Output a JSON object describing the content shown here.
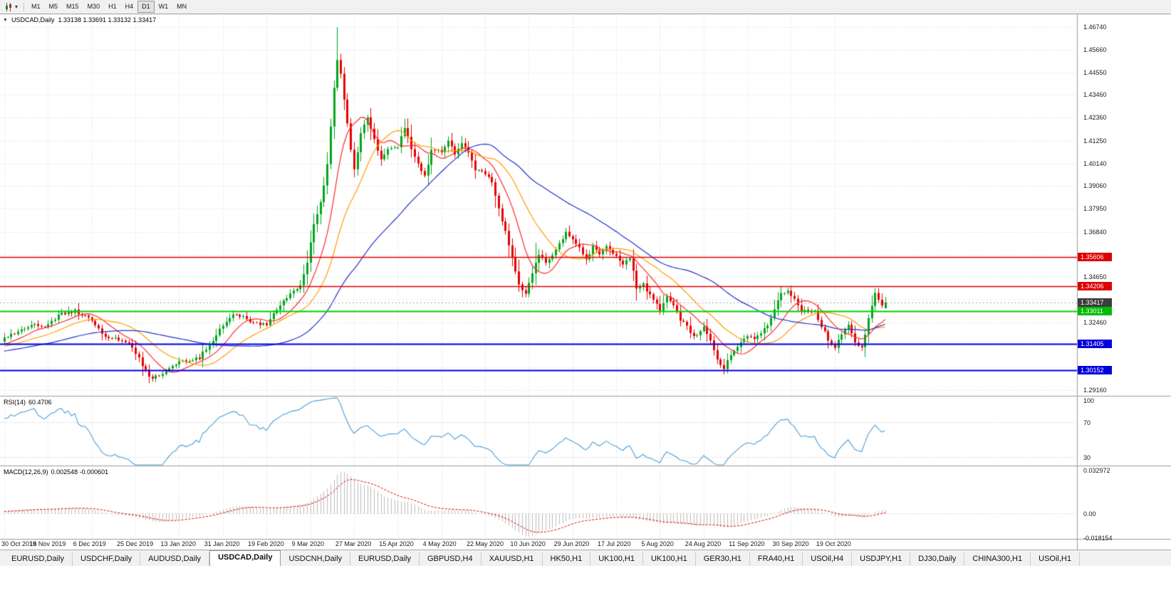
{
  "toolbar": {
    "timeframes": [
      "M1",
      "M5",
      "M15",
      "M30",
      "H1",
      "H4",
      "D1",
      "W1",
      "MN"
    ],
    "active_timeframe": "D1",
    "icons": [
      "candlestick-chart-icon",
      "chevron-down-icon"
    ]
  },
  "chart_header": {
    "symbol_title": "USDCAD,Daily",
    "ohlc": "1.33138 1.33691 1.33132 1.33417"
  },
  "price_axis": {
    "labels": [
      "1.46740",
      "1.45660",
      "1.44550",
      "1.43460",
      "1.42360",
      "1.41250",
      "1.40140",
      "1.39060",
      "1.37950",
      "1.36840",
      "1.34650",
      "1.32460",
      "1.29160"
    ],
    "grid_prices": [
      1.4674,
      1.4566,
      1.4455,
      1.4346,
      1.4236,
      1.4125,
      1.4014,
      1.3906,
      1.3795,
      1.3684,
      1.3573,
      1.3465,
      1.3356,
      1.3246,
      1.3137,
      1.3027,
      1.2916
    ],
    "badges": [
      {
        "label": "1.35606",
        "price": 1.35606,
        "color": "#dd0000",
        "type": "resistance-line"
      },
      {
        "label": "1.34206",
        "price": 1.34206,
        "color": "#dd0000",
        "type": "resistance-line"
      },
      {
        "label": "1.33417",
        "price": 1.33417,
        "color": "#3c3c3c",
        "type": "current-price"
      },
      {
        "label": "1.33011",
        "price": 1.33011,
        "color": "#00bb00",
        "type": "support-line"
      },
      {
        "label": "1.31405",
        "price": 1.31405,
        "color": "#0000dd",
        "type": "support-line"
      },
      {
        "label": "1.30152",
        "price": 1.30152,
        "color": "#0000dd",
        "type": "support-line"
      }
    ]
  },
  "x_axis": {
    "labels": [
      "30 Oct 2019",
      "18 Nov 2019",
      "6 Dec 2019",
      "25 Dec 2019",
      "13 Jan 2020",
      "31 Jan 2020",
      "19 Feb 2020",
      "9 Mar 2020",
      "27 Mar 2020",
      "15 Apr 2020",
      "4 May 2020",
      "22 May 2020",
      "10 Jun 2020",
      "29 Jun 2020",
      "17 Jul 2020",
      "5 Aug 2020",
      "24 Aug 2020",
      "11 Sep 2020",
      "30 Sep 2020",
      "19 Oct 2020"
    ],
    "tick_step": 13
  },
  "rsi_panel": {
    "label": "RSI(14)",
    "value": "60.4706",
    "axis_labels": [
      "100",
      "70",
      "30"
    ],
    "levels": [
      70,
      30
    ],
    "range": [
      20,
      100
    ],
    "line_color": "#4a9fd8"
  },
  "macd_panel": {
    "label": "MACD(12,26,9)",
    "values": "0.002548 -0.000601",
    "axis_labels": [
      "0.032972",
      "0.00",
      "-0.018154"
    ],
    "range": [
      -0.018154,
      0.032972
    ],
    "histogram_color": "#bcbcbc",
    "signal_color": "#e00000"
  },
  "chart_data": {
    "type": "candlestick",
    "symbol": "USDCAD",
    "timeframe": "Daily",
    "current_bar": {
      "open": 1.33138,
      "high": 1.33691,
      "low": 1.33132,
      "close": 1.33417
    },
    "bars_visible": 263,
    "price_range": [
      1.289,
      1.474
    ],
    "up_color": "#00a51e",
    "down_color": "#e60000",
    "close_keypoints": [
      [
        0,
        1.3165
      ],
      [
        4,
        1.3205
      ],
      [
        8,
        1.3235
      ],
      [
        13,
        1.323
      ],
      [
        17,
        1.329
      ],
      [
        21,
        1.33
      ],
      [
        26,
        1.3255
      ],
      [
        30,
        1.3175
      ],
      [
        34,
        1.3165
      ],
      [
        38,
        1.3125
      ],
      [
        41,
        1.304
      ],
      [
        43,
        1.2975
      ],
      [
        46,
        1.2985
      ],
      [
        50,
        1.304
      ],
      [
        54,
        1.306
      ],
      [
        58,
        1.3075
      ],
      [
        61,
        1.314
      ],
      [
        65,
        1.323
      ],
      [
        69,
        1.329
      ],
      [
        73,
        1.3255
      ],
      [
        78,
        1.323
      ],
      [
        81,
        1.331
      ],
      [
        84,
        1.337
      ],
      [
        88,
        1.342
      ],
      [
        90,
        1.353
      ],
      [
        92,
        1.372
      ],
      [
        94,
        1.382
      ],
      [
        96,
        1.401
      ],
      [
        98,
        1.438
      ],
      [
        99,
        1.451
      ],
      [
        100,
        1.445
      ],
      [
        101,
        1.433
      ],
      [
        103,
        1.409
      ],
      [
        104,
        1.399
      ],
      [
        106,
        1.416
      ],
      [
        108,
        1.423
      ],
      [
        110,
        1.414
      ],
      [
        112,
        1.403
      ],
      [
        114,
        1.409
      ],
      [
        117,
        1.41
      ],
      [
        119,
        1.419
      ],
      [
        121,
        1.409
      ],
      [
        123,
        1.401
      ],
      [
        125,
        1.395
      ],
      [
        127,
        1.408
      ],
      [
        130,
        1.407
      ],
      [
        132,
        1.413
      ],
      [
        134,
        1.405
      ],
      [
        136,
        1.411
      ],
      [
        138,
        1.406
      ],
      [
        140,
        1.399
      ],
      [
        143,
        1.397
      ],
      [
        145,
        1.392
      ],
      [
        147,
        1.379
      ],
      [
        149,
        1.369
      ],
      [
        151,
        1.356
      ],
      [
        153,
        1.343
      ],
      [
        155,
        1.339
      ],
      [
        157,
        1.348
      ],
      [
        159,
        1.358
      ],
      [
        161,
        1.353
      ],
      [
        163,
        1.357
      ],
      [
        165,
        1.362
      ],
      [
        167,
        1.368
      ],
      [
        169,
        1.365
      ],
      [
        171,
        1.36
      ],
      [
        173,
        1.3545
      ],
      [
        175,
        1.3615
      ],
      [
        177,
        1.358
      ],
      [
        179,
        1.3615
      ],
      [
        182,
        1.357
      ],
      [
        184,
        1.353
      ],
      [
        186,
        1.356
      ],
      [
        188,
        1.3415
      ],
      [
        190,
        1.3425
      ],
      [
        192,
        1.338
      ],
      [
        195,
        1.3305
      ],
      [
        197,
        1.337
      ],
      [
        199,
        1.333
      ],
      [
        201,
        1.326
      ],
      [
        203,
        1.3225
      ],
      [
        205,
        1.3175
      ],
      [
        208,
        1.322
      ],
      [
        210,
        1.3155
      ],
      [
        212,
        1.306
      ],
      [
        214,
        1.3015
      ],
      [
        216,
        1.3095
      ],
      [
        218,
        1.313
      ],
      [
        221,
        1.318
      ],
      [
        223,
        1.316
      ],
      [
        225,
        1.32
      ],
      [
        227,
        1.3235
      ],
      [
        229,
        1.331
      ],
      [
        231,
        1.338
      ],
      [
        233,
        1.34
      ],
      [
        235,
        1.336
      ],
      [
        237,
        1.3295
      ],
      [
        239,
        1.33
      ],
      [
        241,
        1.3295
      ],
      [
        243,
        1.323
      ],
      [
        245,
        1.316
      ],
      [
        247,
        1.3125
      ],
      [
        249,
        1.3185
      ],
      [
        251,
        1.3235
      ],
      [
        253,
        1.3145
      ],
      [
        255,
        1.3125
      ],
      [
        257,
        1.326
      ],
      [
        258,
        1.333
      ],
      [
        259,
        1.3385
      ],
      [
        260,
        1.336
      ],
      [
        261,
        1.332
      ],
      [
        262,
        1.33417
      ]
    ],
    "extremes": [
      {
        "index": 99,
        "high": 1.4674
      },
      {
        "index": 43,
        "low": 1.2951
      },
      {
        "index": 214,
        "low": 1.2994
      },
      {
        "index": 158,
        "high": 1.363
      }
    ],
    "horizontal_lines": [
      {
        "price": 1.35606,
        "color": "#e00000",
        "width": 1.5
      },
      {
        "price": 1.34206,
        "color": "#e00000",
        "width": 1.5
      },
      {
        "price": 1.33011,
        "color": "#00d000",
        "width": 2
      },
      {
        "price": 1.31405,
        "color": "#0000e0",
        "width": 2
      },
      {
        "price": 1.30152,
        "color": "#0000e0",
        "width": 2
      }
    ],
    "current_price_line": {
      "price": 1.33417,
      "color": "#a8a8a8"
    },
    "moving_averages": [
      {
        "period": 10,
        "color": "#ff2a2a"
      },
      {
        "period": 21,
        "color": "#ff9d00"
      },
      {
        "period": 48,
        "color": "#2233cc"
      }
    ],
    "indicators": {
      "rsi": {
        "period": 14,
        "current": 60.4706
      },
      "macd": {
        "fast": 12,
        "slow": 26,
        "signal": 9,
        "main_current": 0.002548,
        "signal_current": -0.000601
      }
    }
  },
  "tabs": {
    "active_index": 3,
    "items": [
      "EURUSD,Daily",
      "USDCHF,Daily",
      "AUDUSD,Daily",
      "USDCAD,Daily",
      "USDCNH,Daily",
      "EURUSD,Daily",
      "GBPUSD,H4",
      "XAUUSD,H1",
      "HK50,H1",
      "UK100,H1",
      "UK100,H1",
      "GER30,H1",
      "FRA40,H1",
      "USOil,H4",
      "USDJPY,H1",
      "DJ30,Daily",
      "CHINA300,H1",
      "USOil,H1"
    ]
  }
}
